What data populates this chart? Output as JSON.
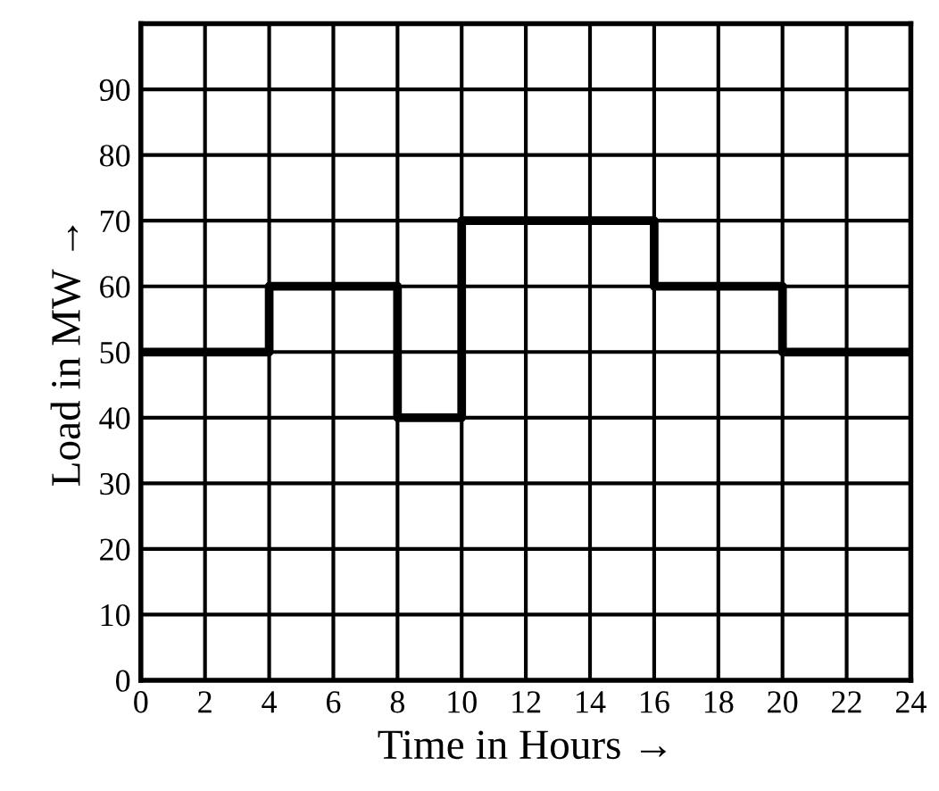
{
  "chart_data": {
    "type": "step",
    "xlabel": "Time in Hours →",
    "ylabel": "Load in MW →",
    "x": [
      0,
      4,
      8,
      10,
      16,
      20,
      24
    ],
    "series": [
      {
        "color": "#000000",
        "values": [
          50,
          60,
          40,
          70,
          60,
          50,
          50
        ]
      }
    ],
    "xlim": [
      0,
      24
    ],
    "xticks": [
      0,
      2,
      4,
      6,
      8,
      10,
      12,
      14,
      16,
      18,
      20,
      22,
      24
    ],
    "ylim": [
      0,
      100
    ],
    "yticks": [
      0,
      10,
      20,
      30,
      40,
      50,
      60,
      70,
      80,
      90,
      {
        "value": 100,
        "label": null
      }
    ],
    "grid": true,
    "line_style": "solid"
  }
}
